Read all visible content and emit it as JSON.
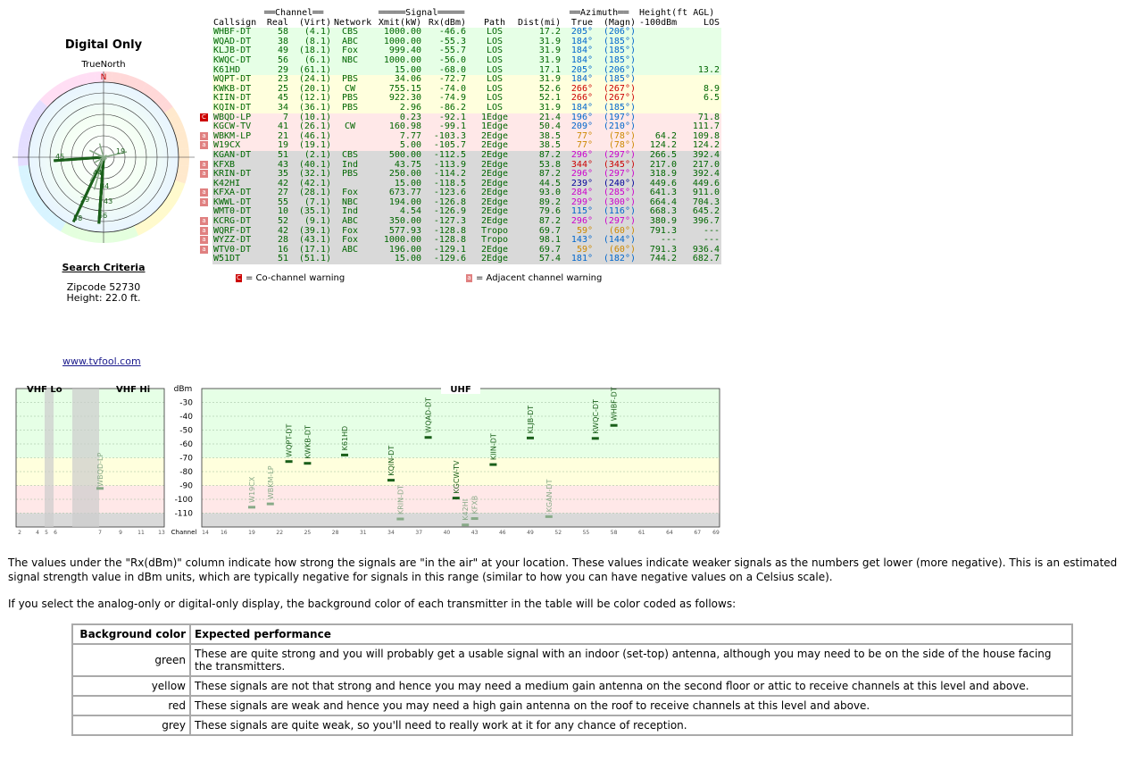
{
  "left_panel": {
    "title": "Digital Only",
    "compass_label": "TrueNorth",
    "north_letter": "N",
    "polar_labels": [
      "19",
      "45",
      "44",
      "34",
      "58",
      "56",
      "43",
      "29"
    ],
    "search_title": "Search Criteria",
    "zipcode": "Zipcode 52730",
    "height": "Height: 22.0 ft.",
    "site_link": "www.tvfool.com"
  },
  "table": {
    "group_headers": {
      "channel": "══Channel══",
      "signal": "═════Signal═════",
      "azimuth": "══Azimuth══",
      "height": "Height(ft AGL)"
    },
    "columns": {
      "callsign": "Callsign",
      "real": "Real",
      "virt": "(Virt)",
      "network": "Network",
      "xmit": "Xmit(kW)",
      "rx": "Rx(dBm)",
      "path": "Path",
      "dist": "Dist(mi)",
      "true": "True",
      "magn": "(Magn)",
      "h100": "-100dBm",
      "los": "LOS"
    },
    "rows": [
      {
        "callsign": "WHBF-DT",
        "real": "58",
        "virt": "(4.1)",
        "network": "CBS",
        "xmit": "1000.00",
        "rx": "-46.6",
        "path": "LOS",
        "dist": "17.2",
        "true": "205°",
        "magn": "(206°)",
        "h100": "",
        "los": "",
        "color": "green",
        "az": "blue",
        "warn": ""
      },
      {
        "callsign": "WQAD-DT",
        "real": "38",
        "virt": "(8.1)",
        "network": "ABC",
        "xmit": "1000.00",
        "rx": "-55.3",
        "path": "LOS",
        "dist": "31.9",
        "true": "184°",
        "magn": "(185°)",
        "h100": "",
        "los": "",
        "color": "green",
        "az": "blue",
        "warn": ""
      },
      {
        "callsign": "KLJB-DT",
        "real": "49",
        "virt": "(18.1)",
        "network": "Fox",
        "xmit": "999.40",
        "rx": "-55.7",
        "path": "LOS",
        "dist": "31.9",
        "true": "184°",
        "magn": "(185°)",
        "h100": "",
        "los": "",
        "color": "green",
        "az": "blue",
        "warn": ""
      },
      {
        "callsign": "KWQC-DT",
        "real": "56",
        "virt": "(6.1)",
        "network": "NBC",
        "xmit": "1000.00",
        "rx": "-56.0",
        "path": "LOS",
        "dist": "31.9",
        "true": "184°",
        "magn": "(185°)",
        "h100": "",
        "los": "",
        "color": "green",
        "az": "blue",
        "warn": ""
      },
      {
        "callsign": "K61HD",
        "real": "29",
        "virt": "(61.1)",
        "network": "",
        "xmit": "15.00",
        "rx": "-68.0",
        "path": "LOS",
        "dist": "17.1",
        "true": "205°",
        "magn": "(206°)",
        "h100": "",
        "los": "13.2",
        "color": "green",
        "az": "blue",
        "warn": ""
      },
      {
        "callsign": "WQPT-DT",
        "real": "23",
        "virt": "(24.1)",
        "network": "PBS",
        "xmit": "34.06",
        "rx": "-72.7",
        "path": "LOS",
        "dist": "31.9",
        "true": "184°",
        "magn": "(185°)",
        "h100": "",
        "los": "",
        "color": "yellow",
        "az": "blue",
        "warn": ""
      },
      {
        "callsign": "KWKB-DT",
        "real": "25",
        "virt": "(20.1)",
        "network": "CW",
        "xmit": "755.15",
        "rx": "-74.0",
        "path": "LOS",
        "dist": "52.6",
        "true": "266°",
        "magn": "(267°)",
        "h100": "",
        "los": "8.9",
        "color": "yellow",
        "az": "red",
        "warn": ""
      },
      {
        "callsign": "KIIN-DT",
        "real": "45",
        "virt": "(12.1)",
        "network": "PBS",
        "xmit": "922.30",
        "rx": "-74.9",
        "path": "LOS",
        "dist": "52.1",
        "true": "266°",
        "magn": "(267°)",
        "h100": "",
        "los": "6.5",
        "color": "yellow",
        "az": "red",
        "warn": ""
      },
      {
        "callsign": "KQIN-DT",
        "real": "34",
        "virt": "(36.1)",
        "network": "PBS",
        "xmit": "2.96",
        "rx": "-86.2",
        "path": "LOS",
        "dist": "31.9",
        "true": "184°",
        "magn": "(185°)",
        "h100": "",
        "los": "",
        "color": "yellow",
        "az": "blue",
        "warn": ""
      },
      {
        "callsign": "WBQD-LP",
        "real": "7",
        "virt": "(10.1)",
        "network": "",
        "xmit": "0.23",
        "rx": "-92.1",
        "path": "1Edge",
        "dist": "21.4",
        "true": "196°",
        "magn": "(197°)",
        "h100": "",
        "los": "71.8",
        "color": "red",
        "az": "blue",
        "warn": "co"
      },
      {
        "callsign": "KGCW-TV",
        "real": "41",
        "virt": "(26.1)",
        "network": "CW",
        "xmit": "160.98",
        "rx": "-99.1",
        "path": "1Edge",
        "dist": "50.4",
        "true": "209°",
        "magn": "(210°)",
        "h100": "",
        "los": "111.7",
        "color": "red",
        "az": "blue",
        "warn": ""
      },
      {
        "callsign": "WBKM-LP",
        "real": "21",
        "virt": "(46.1)",
        "network": "",
        "xmit": "7.77",
        "rx": "-103.3",
        "path": "2Edge",
        "dist": "38.5",
        "true": "77°",
        "magn": "(78°)",
        "h100": "64.2",
        "los": "109.8",
        "color": "red",
        "az": "orange",
        "warn": "adj"
      },
      {
        "callsign": "W19CX",
        "real": "19",
        "virt": "(19.1)",
        "network": "",
        "xmit": "5.00",
        "rx": "-105.7",
        "path": "2Edge",
        "dist": "38.5",
        "true": "77°",
        "magn": "(78°)",
        "h100": "124.2",
        "los": "124.2",
        "color": "red",
        "az": "orange",
        "warn": "adj"
      },
      {
        "callsign": "KGAN-DT",
        "real": "51",
        "virt": "(2.1)",
        "network": "CBS",
        "xmit": "500.00",
        "rx": "-112.5",
        "path": "2Edge",
        "dist": "87.2",
        "true": "296°",
        "magn": "(297°)",
        "h100": "266.5",
        "los": "392.4",
        "color": "grey",
        "az": "magenta",
        "warn": ""
      },
      {
        "callsign": "KFXB",
        "real": "43",
        "virt": "(40.1)",
        "network": "Ind",
        "xmit": "43.75",
        "rx": "-113.9",
        "path": "2Edge",
        "dist": "53.8",
        "true": "344°",
        "magn": "(345°)",
        "h100": "217.0",
        "los": "217.0",
        "color": "grey",
        "az": "red",
        "warn": "adj"
      },
      {
        "callsign": "KRIN-DT",
        "real": "35",
        "virt": "(32.1)",
        "network": "PBS",
        "xmit": "250.00",
        "rx": "-114.2",
        "path": "2Edge",
        "dist": "87.2",
        "true": "296°",
        "magn": "(297°)",
        "h100": "318.9",
        "los": "392.4",
        "color": "grey",
        "az": "magenta",
        "warn": "adj"
      },
      {
        "callsign": "K42HI",
        "real": "42",
        "virt": "(42.1)",
        "network": "",
        "xmit": "15.00",
        "rx": "-118.5",
        "path": "2Edge",
        "dist": "44.5",
        "true": "239°",
        "magn": "(240°)",
        "h100": "449.6",
        "los": "449.6",
        "color": "grey",
        "az": "navy",
        "warn": ""
      },
      {
        "callsign": "KFXA-DT",
        "real": "27",
        "virt": "(28.1)",
        "network": "Fox",
        "xmit": "673.77",
        "rx": "-123.6",
        "path": "2Edge",
        "dist": "93.0",
        "true": "284°",
        "magn": "(285°)",
        "h100": "641.3",
        "los": "911.0",
        "color": "grey",
        "az": "magenta",
        "warn": "adj"
      },
      {
        "callsign": "KWWL-DT",
        "real": "55",
        "virt": "(7.1)",
        "network": "NBC",
        "xmit": "194.00",
        "rx": "-126.8",
        "path": "2Edge",
        "dist": "89.2",
        "true": "299°",
        "magn": "(300°)",
        "h100": "664.4",
        "los": "704.3",
        "color": "grey",
        "az": "magenta",
        "warn": "adj"
      },
      {
        "callsign": "WMT0-DT",
        "real": "10",
        "virt": "(35.1)",
        "network": "Ind",
        "xmit": "4.54",
        "rx": "-126.9",
        "path": "2Edge",
        "dist": "79.6",
        "true": "115°",
        "magn": "(116°)",
        "h100": "668.3",
        "los": "645.2",
        "color": "grey",
        "az": "blue",
        "warn": ""
      },
      {
        "callsign": "KCRG-DT",
        "real": "52",
        "virt": "(9.1)",
        "network": "ABC",
        "xmit": "350.00",
        "rx": "-127.3",
        "path": "2Edge",
        "dist": "87.2",
        "true": "296°",
        "magn": "(297°)",
        "h100": "380.9",
        "los": "396.7",
        "color": "grey",
        "az": "magenta",
        "warn": "adj"
      },
      {
        "callsign": "WQRF-DT",
        "real": "42",
        "virt": "(39.1)",
        "network": "Fox",
        "xmit": "577.93",
        "rx": "-128.8",
        "path": "Tropo",
        "dist": "69.7",
        "true": "59°",
        "magn": "(60°)",
        "h100": "791.3",
        "los": "---",
        "color": "grey",
        "az": "orange",
        "warn": "adj"
      },
      {
        "callsign": "WYZZ-DT",
        "real": "28",
        "virt": "(43.1)",
        "network": "Fox",
        "xmit": "1000.00",
        "rx": "-128.8",
        "path": "Tropo",
        "dist": "98.1",
        "true": "143°",
        "magn": "(144°)",
        "h100": "---",
        "los": "---",
        "color": "grey",
        "az": "blue",
        "warn": "adj"
      },
      {
        "callsign": "WTV0-DT",
        "real": "16",
        "virt": "(17.1)",
        "network": "ABC",
        "xmit": "196.00",
        "rx": "-129.1",
        "path": "2Edge",
        "dist": "69.7",
        "true": "59°",
        "magn": "(60°)",
        "h100": "791.3",
        "los": "936.4",
        "color": "grey",
        "az": "orange",
        "warn": "adj"
      },
      {
        "callsign": "W51DT",
        "real": "51",
        "virt": "(51.1)",
        "network": "",
        "xmit": "15.00",
        "rx": "-129.6",
        "path": "2Edge",
        "dist": "57.4",
        "true": "181°",
        "magn": "(182°)",
        "h100": "744.2",
        "los": "682.7",
        "color": "grey",
        "az": "blue",
        "warn": ""
      }
    ],
    "legend_co": "= Co-channel warning",
    "legend_adj": "= Adjacent channel warning",
    "legend_co_mark": "C",
    "legend_adj_mark": "a"
  },
  "chart_data": {
    "type": "scatter",
    "title": "",
    "band_labels": [
      "VHF Lo",
      "VHF Hi",
      "UHF"
    ],
    "ylabel": "dBm",
    "xlabel": "Channel",
    "ylim": [
      -120,
      -20
    ],
    "yticks": [
      -30,
      -40,
      -50,
      -60,
      -70,
      -80,
      -90,
      -100,
      -110
    ],
    "vhf_lo_ticks": [
      2,
      4,
      5,
      6
    ],
    "vhf_hi_ticks": [
      7,
      9,
      11,
      13
    ],
    "uhf_ticks": [
      14,
      16,
      19,
      22,
      25,
      28,
      31,
      34,
      37,
      40,
      43,
      46,
      49,
      52,
      55,
      58,
      61,
      64,
      67,
      69
    ],
    "points": [
      {
        "name": "W19CX",
        "channel": 19,
        "rx": -105.7,
        "strong": false
      },
      {
        "name": "WBKM-LP",
        "channel": 21,
        "rx": -103.3,
        "strong": false
      },
      {
        "name": "WQPT-DT",
        "channel": 23,
        "rx": -72.7,
        "strong": true
      },
      {
        "name": "KWKB-DT",
        "channel": 25,
        "rx": -74.0,
        "strong": true
      },
      {
        "name": "K61HD",
        "channel": 29,
        "rx": -68.0,
        "strong": true
      },
      {
        "name": "KQIN-DT",
        "channel": 34,
        "rx": -86.2,
        "strong": true
      },
      {
        "name": "KRIN-DT",
        "channel": 35,
        "rx": -114.2,
        "strong": false
      },
      {
        "name": "WQAD-DT",
        "channel": 38,
        "rx": -55.3,
        "strong": true
      },
      {
        "name": "KGCW-TV",
        "channel": 41,
        "rx": -99.1,
        "strong": true
      },
      {
        "name": "K42HI",
        "channel": 42,
        "rx": -118.5,
        "strong": false
      },
      {
        "name": "KFXB",
        "channel": 43,
        "rx": -113.9,
        "strong": false
      },
      {
        "name": "KIIN-DT",
        "channel": 45,
        "rx": -74.9,
        "strong": true
      },
      {
        "name": "KLJB-DT",
        "channel": 49,
        "rx": -55.7,
        "strong": true
      },
      {
        "name": "KGAN-DT",
        "channel": 51,
        "rx": -112.5,
        "strong": false
      },
      {
        "name": "KWQC-DT",
        "channel": 56,
        "rx": -56.0,
        "strong": true
      },
      {
        "name": "WHBF-DT",
        "channel": 58,
        "rx": -46.6,
        "strong": true
      }
    ],
    "vhf_points": [
      {
        "name": "WBQD-LP",
        "channel": 7,
        "rx": -92.1,
        "strong": false
      }
    ]
  },
  "text": {
    "para1": "The values under the \"Rx(dBm)\" column indicate how strong the signals are \"in the air\" at your location.  These values indicate weaker signals as the numbers get lower (more negative).  This is an estimated signal strength value in dBm units, which are typically negative for signals in this range (similar to how you can have negative values on a Celsius scale).",
    "para2": "If you select the analog-only or digital-only display, the background color of each transmitter in the table will be color coded as follows:"
  },
  "perf_table": {
    "head_col1": "Background color",
    "head_col2": "Expected performance",
    "rows": [
      {
        "color": "green",
        "desc": "These are quite strong and you will probably get a usable signal with an indoor (set-top) antenna, although you may need to be on the side of the house facing the transmitters."
      },
      {
        "color": "yellow",
        "desc": "These signals are not that strong and hence you may need a medium gain antenna on the second floor or attic to receive channels at this level and above."
      },
      {
        "color": "red",
        "desc": "These signals are weak and hence you may need a high gain antenna on the roof to receive channels at this level and above."
      },
      {
        "color": "grey",
        "desc": "These signals are quite weak, so you'll need to really work at it for any chance of reception."
      }
    ]
  }
}
